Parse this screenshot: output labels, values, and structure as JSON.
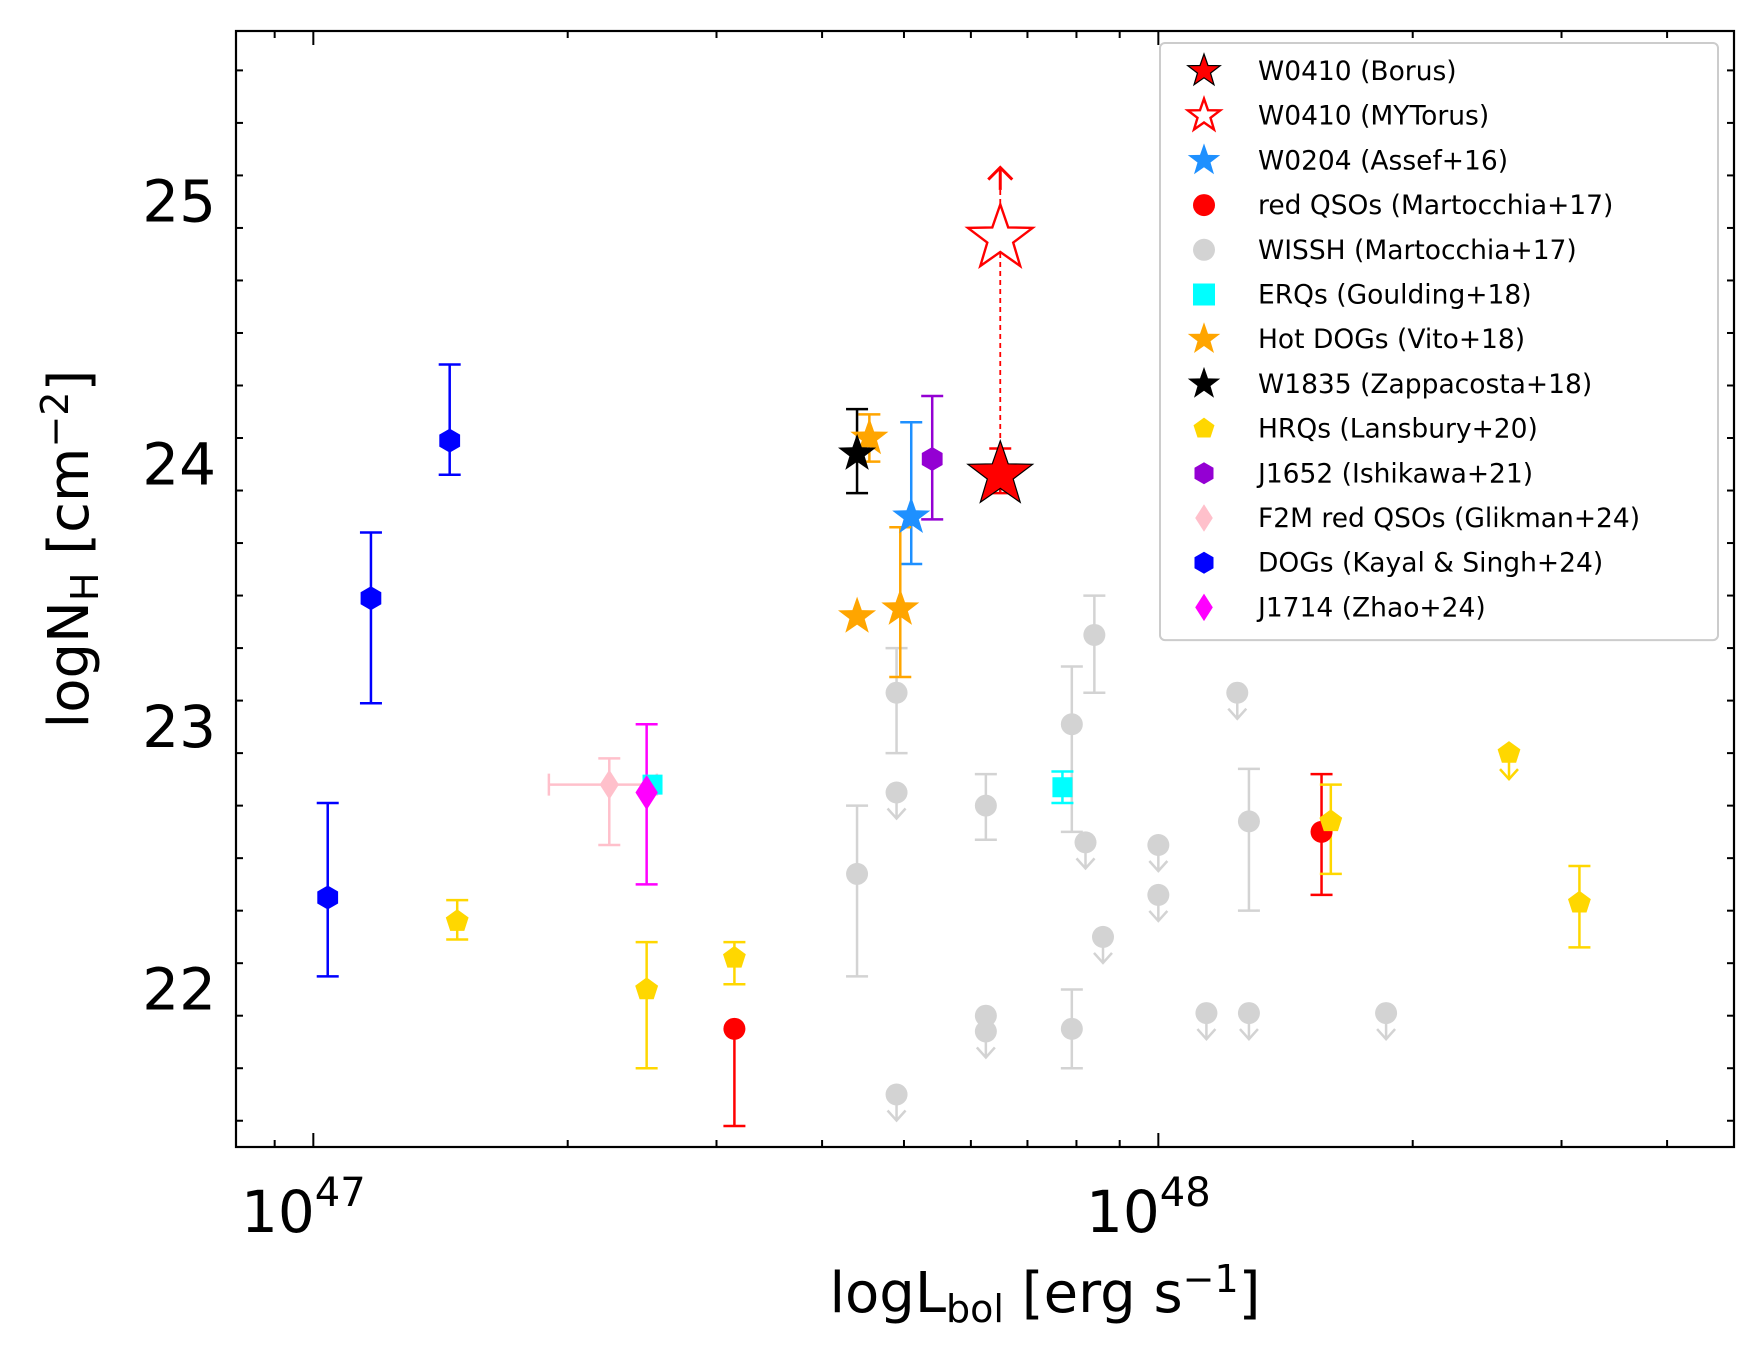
{
  "chart_data": {
    "type": "scatter",
    "xscale": "log",
    "xlim": [
      8.1e+46,
      4.8e+48
    ],
    "ylim": [
      21.4,
      25.65
    ],
    "xticks": [
      {
        "value": 1e+47,
        "base": "10",
        "exp": "47"
      },
      {
        "value": 1e+48,
        "base": "10",
        "exp": "48"
      }
    ],
    "yticks": [
      "22",
      "23",
      "24",
      "25"
    ],
    "xlabel": {
      "main": "logL",
      "sub": "bol",
      "rest": " [erg s",
      "sup": "−1",
      "end": "]"
    },
    "ylabel": {
      "main": "logN",
      "sub": "H",
      "rest": " [cm",
      "sup": "−2",
      "end": "]"
    },
    "legend_position": "top-right",
    "colors": {
      "red": "#ff0000",
      "dodgerblue": "#1e90ff",
      "lightgray": "#d3d3d3",
      "cyan": "#00ffff",
      "orange": "#ffa500",
      "black": "#000000",
      "gold": "#ffd700",
      "purple": "#800080",
      "darkviolet": "#9400d3",
      "pink": "#ffc0cb",
      "blue": "#0000ff",
      "magenta": "#ff00ff"
    },
    "series": [
      {
        "name": "W0410 (Borus)",
        "marker": "star",
        "color": "#ff0000",
        "edge": "#000000",
        "size": 34,
        "points": [
          {
            "x": 6.5e+47,
            "y": 23.96,
            "yerr": [
              0.07,
              0.1
            ]
          }
        ]
      },
      {
        "name": "W0410 (MYTorus)",
        "marker": "star-open",
        "color": "#ff0000",
        "size": 34,
        "points": [
          {
            "x": 6.5e+47,
            "y": 24.86,
            "lower_limit": true
          }
        ]
      },
      {
        "name": "W0204 (Assef+16)",
        "marker": "star",
        "color": "#1e90ff",
        "size": 20,
        "points": [
          {
            "x": 5.1e+47,
            "y": 23.8,
            "yerr": [
              0.18,
              0.36
            ]
          }
        ]
      },
      {
        "name": "red QSOs (Martocchia+17)",
        "marker": "circle",
        "color": "#ff0000",
        "size": 11,
        "points": [
          {
            "x": 3.15e+47,
            "y": 21.85,
            "yerr": [
              0.37,
              0
            ]
          },
          {
            "x": 1.56e+48,
            "y": 22.6,
            "yerr": [
              0.24,
              0.22
            ]
          }
        ]
      },
      {
        "name": "WISSH (Martocchia+17)",
        "marker": "circle",
        "color": "#d3d3d3",
        "size": 11,
        "points": [
          {
            "x": 4.4e+47,
            "y": 22.44,
            "yerr": [
              0.39,
              0.26
            ]
          },
          {
            "x": 4.9e+47,
            "y": 23.13,
            "yerr": [
              0.23,
              0.17
            ]
          },
          {
            "x": 4.9e+47,
            "y": 22.75,
            "upper_limit": true
          },
          {
            "x": 4.9e+47,
            "y": 21.6,
            "upper_limit": true
          },
          {
            "x": 6.25e+47,
            "y": 22.7,
            "yerr": [
              0.13,
              0.12
            ]
          },
          {
            "x": 6.25e+47,
            "y": 21.9,
            "upper_limit": true
          },
          {
            "x": 6.25e+47,
            "y": 21.84,
            "upper_limit": true
          },
          {
            "x": 7.9e+47,
            "y": 23.01,
            "yerr": [
              0.41,
              0.22
            ]
          },
          {
            "x": 7.9e+47,
            "y": 21.85,
            "yerr": [
              0.15,
              0.15
            ]
          },
          {
            "x": 8.2e+47,
            "y": 22.56,
            "upper_limit": true
          },
          {
            "x": 8.4e+47,
            "y": 23.35,
            "yerr": [
              0.22,
              0.15
            ]
          },
          {
            "x": 8.6e+47,
            "y": 22.2,
            "upper_limit": true
          },
          {
            "x": 1e+48,
            "y": 22.55,
            "upper_limit": true
          },
          {
            "x": 1e+48,
            "y": 22.36,
            "upper_limit": true
          },
          {
            "x": 1.14e+48,
            "y": 21.91,
            "upper_limit": true
          },
          {
            "x": 1.24e+48,
            "y": 23.13,
            "upper_limit": true
          },
          {
            "x": 1.28e+48,
            "y": 22.64,
            "yerr": [
              0.34,
              0.2
            ]
          },
          {
            "x": 1.28e+48,
            "y": 21.91,
            "upper_limit": true
          },
          {
            "x": 1.86e+48,
            "y": 21.91,
            "upper_limit": true
          }
        ]
      },
      {
        "name": "ERQs (Goulding+18)",
        "marker": "square",
        "color": "#00ffff",
        "size": 10,
        "points": [
          {
            "x": 2.52e+47,
            "y": 22.78,
            "yerr": [
              0,
              0
            ]
          },
          {
            "x": 7.7e+47,
            "y": 22.77,
            "yerr": [
              0.06,
              0.06
            ]
          }
        ]
      },
      {
        "name": "Hot DOGs (Vito+18)",
        "marker": "star",
        "color": "#ffa500",
        "size": 20,
        "points": [
          {
            "x": 4.55e+47,
            "y": 24.1,
            "yerr": [
              0.09,
              0.09
            ]
          },
          {
            "x": 4.4e+47,
            "y": 23.42,
            "yerr": [
              0,
              0
            ]
          },
          {
            "x": 4.95e+47,
            "y": 23.45,
            "yerr": [
              0.26,
              0.31
            ]
          }
        ]
      },
      {
        "name": "W1835 (Zappacosta+18)",
        "marker": "star",
        "color": "#000000",
        "size": 20,
        "points": [
          {
            "x": 4.4e+47,
            "y": 24.04,
            "yerr": [
              0.15,
              0.17
            ]
          }
        ]
      },
      {
        "name": "HRQs (Lansbury+20)",
        "marker": "pentagon",
        "color": "#ffd700",
        "size": 12,
        "points": [
          {
            "x": 1.48e+47,
            "y": 22.26,
            "yerr": [
              0.07,
              0.08
            ]
          },
          {
            "x": 2.48e+47,
            "y": 22.0,
            "yerr": [
              0.3,
              0.18
            ]
          },
          {
            "x": 3.15e+47,
            "y": 22.12,
            "yerr": [
              0.1,
              0.06
            ]
          },
          {
            "x": 1.6e+48,
            "y": 22.64,
            "yerr": [
              0.2,
              0.14
            ]
          },
          {
            "x": 2.6e+48,
            "y": 22.9,
            "upper_limit": true
          },
          {
            "x": 3.15e+48,
            "y": 22.33,
            "yerr": [
              0.17,
              0.14
            ]
          }
        ]
      },
      {
        "name": "J1652 (Ishikawa+21)",
        "marker": "hexagon",
        "color": "#9400d3",
        "size": 12,
        "points": [
          {
            "x": 5.4e+47,
            "y": 24.02,
            "yerr": [
              0.23,
              0.24
            ]
          }
        ]
      },
      {
        "name": "F2M red QSOs (Glikman+24)",
        "marker": "diamond",
        "color": "#ffc0cb",
        "size": 12,
        "points": [
          {
            "x": 2.24e+47,
            "y": 22.78,
            "yerr": [
              0.23,
              0.1
            ],
            "xerr": [
              3.4e+46,
              3.1e+46
            ]
          }
        ]
      },
      {
        "name": "DOGs (Kayal & Singh+24)",
        "marker": "hexagon",
        "color": "#0000ff",
        "size": 12,
        "points": [
          {
            "x": 1.04e+47,
            "y": 22.35,
            "yerr": [
              0.3,
              0.36
            ]
          },
          {
            "x": 1.17e+47,
            "y": 23.49,
            "yerr": [
              0.4,
              0.25
            ]
          },
          {
            "x": 1.45e+47,
            "y": 24.09,
            "yerr": [
              0.13,
              0.29
            ]
          }
        ]
      },
      {
        "name": " J1714 (Zhao+24)",
        "marker": "diamond",
        "color": "#ff00ff",
        "size": 14,
        "points": [
          {
            "x": 2.48e+47,
            "y": 22.75,
            "yerr": [
              0.35,
              0.26
            ]
          }
        ]
      }
    ]
  }
}
